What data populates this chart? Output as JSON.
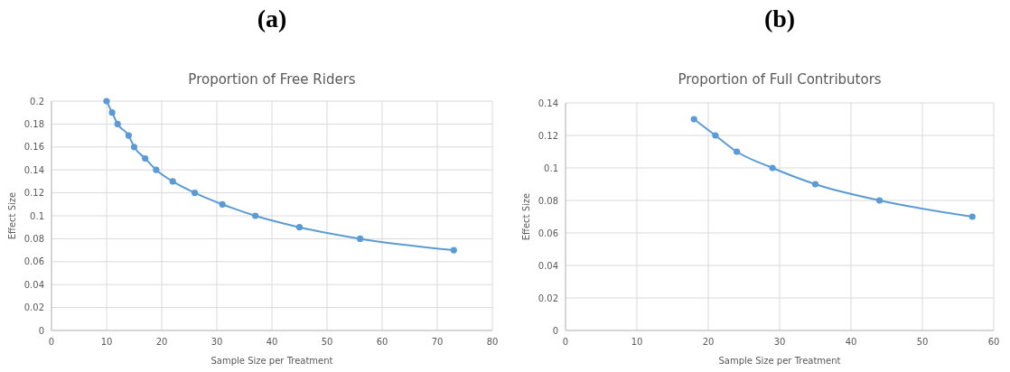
{
  "chart_data": [
    {
      "type": "line",
      "annotations": [
        "(a)"
      ],
      "title": "Proportion of Free Riders",
      "xlabel": "Sample Size per Treatment",
      "ylabel": "Effect Size",
      "x": [
        10,
        11,
        12,
        14,
        15,
        17,
        19,
        22,
        26,
        31,
        37,
        45,
        56,
        73
      ],
      "series": [
        {
          "color": "#5b9bd5",
          "values": [
            0.2,
            0.19,
            0.18,
            0.17,
            0.16,
            0.15,
            0.14,
            0.13,
            0.12,
            0.11,
            0.1,
            0.09,
            0.08,
            0.07
          ]
        }
      ],
      "xlim": [
        0,
        80
      ],
      "xticks": [
        0,
        10,
        20,
        30,
        40,
        50,
        60,
        70,
        80
      ],
      "ylim": [
        0,
        0.2
      ],
      "yticks": [
        0,
        0.02,
        0.04,
        0.06,
        0.08,
        0.1,
        0.12,
        0.14,
        0.16,
        0.18,
        0.2
      ],
      "grid": true,
      "marker": "circle"
    },
    {
      "type": "line",
      "annotations": [
        "(b)"
      ],
      "title": "Proportion of Full Contributors",
      "xlabel": "Sample Size per Treatment",
      "ylabel": "Effect Size",
      "x": [
        18,
        21,
        24,
        29,
        35,
        44,
        57
      ],
      "series": [
        {
          "color": "#5b9bd5",
          "values": [
            0.13,
            0.12,
            0.11,
            0.1,
            0.09,
            0.08,
            0.07
          ]
        }
      ],
      "xlim": [
        0,
        60
      ],
      "xticks": [
        0,
        10,
        20,
        30,
        40,
        50,
        60
      ],
      "ylim": [
        0,
        0.14
      ],
      "yticks": [
        0,
        0.02,
        0.04,
        0.06,
        0.08,
        0.1,
        0.12,
        0.14
      ],
      "grid": true,
      "marker": "circle"
    }
  ]
}
